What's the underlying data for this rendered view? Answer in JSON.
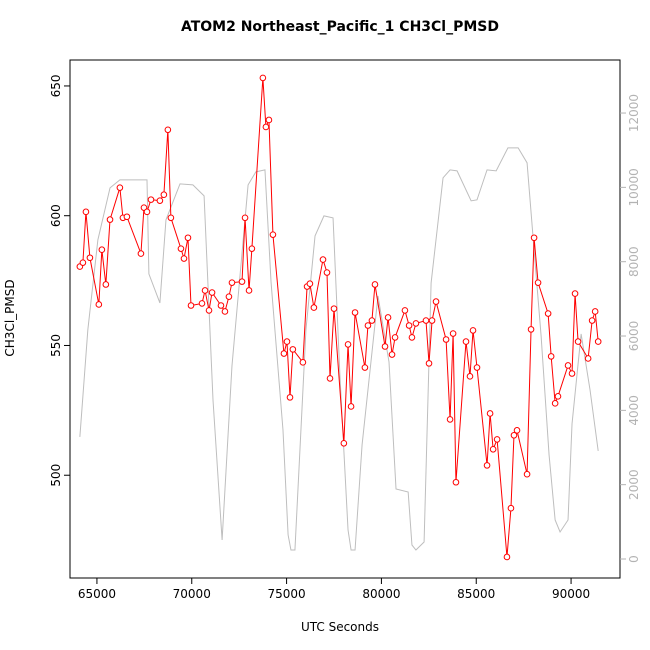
{
  "chart_data": {
    "type": "line",
    "title": "ATOM2 Northeast_Pacific_1 CH3Cl_PMSD",
    "x_label": "UTC Seconds",
    "y_label": "CH3Cl_PMSD",
    "xlim": [
      63580,
      92580
    ],
    "xticks": [
      65000,
      70000,
      75000,
      80000,
      85000,
      90000
    ],
    "ylim": [
      460.4,
      660
    ],
    "yticks": [
      500,
      550,
      600,
      650
    ],
    "y2lim": [
      -511,
      13427
    ],
    "y2ticks": [
      0,
      2000,
      4000,
      6000,
      8000,
      10000,
      12000
    ],
    "series": [
      {
        "color": "#ff0000",
        "markers": true,
        "x": [
          64100,
          64260,
          64420,
          64630,
          65100,
          65260,
          65470,
          65690,
          66210,
          66370,
          66580,
          67320,
          67480,
          67640,
          67850,
          68320,
          68530,
          68740,
          68900,
          69430,
          69590,
          69800,
          69960,
          70540,
          70700,
          70910,
          71070,
          71540,
          71750,
          71960,
          72120,
          72650,
          72810,
          73020,
          73170,
          73750,
          73910,
          74070,
          74280,
          74860,
          75020,
          75180,
          75330,
          75860,
          76080,
          76230,
          76440,
          76920,
          77130,
          77290,
          77500,
          78020,
          78240,
          78400,
          78610,
          79130,
          79290,
          79500,
          79660,
          80190,
          80350,
          80560,
          80720,
          81240,
          81460,
          81610,
          81820,
          82350,
          82510,
          82670,
          82880,
          83410,
          83620,
          83780,
          83930,
          84460,
          84670,
          84830,
          85040,
          85570,
          85730,
          85890,
          86100,
          86620,
          86830,
          86990,
          87150,
          87680,
          87890,
          88050,
          88260,
          88790,
          88950,
          89160,
          89310,
          89840,
          90050,
          90210,
          90370,
          90900,
          91110,
          91270,
          91430
        ],
        "values": [
          580.4,
          581.9,
          601.5,
          583.8,
          565.8,
          586.9,
          573.5,
          598.5,
          610.8,
          599.2,
          599.6,
          585.4,
          603.1,
          601.5,
          606.2,
          605.8,
          608.1,
          633.1,
          599.2,
          587.3,
          583.5,
          591.5,
          565.4,
          566.2,
          571.2,
          563.5,
          570.4,
          565.4,
          563.1,
          568.8,
          574.2,
          574.6,
          599.2,
          571.2,
          587.3,
          653.1,
          634.2,
          636.9,
          592.7,
          546.9,
          551.5,
          530,
          548.5,
          543.5,
          572.7,
          573.8,
          564.6,
          583.1,
          578.1,
          537.3,
          564.2,
          512.3,
          550.4,
          526.5,
          562.7,
          541.5,
          557.7,
          559.6,
          573.5,
          549.6,
          560.8,
          546.5,
          553.1,
          563.5,
          557.7,
          553.1,
          558.5,
          559.6,
          543.1,
          559.6,
          566.9,
          552.3,
          521.5,
          554.6,
          497.3,
          551.5,
          538.1,
          555.8,
          541.5,
          503.8,
          523.8,
          510,
          513.8,
          468.5,
          487.3,
          515.4,
          517.3,
          500.4,
          556.2,
          591.5,
          574.2,
          562.3,
          545.8,
          527.7,
          530.4,
          542.3,
          539.2,
          570,
          551.5,
          545,
          559.6,
          563.1,
          551.5
        ]
      },
      {
        "color": "#bebebe",
        "axis": "y2",
        "x": [
          64100,
          64520,
          65050,
          65690,
          66210,
          67640,
          67740,
          68320,
          68640,
          69380,
          70060,
          70650,
          71120,
          71600,
          72120,
          72970,
          73380,
          73860,
          74180,
          74810,
          75080,
          75230,
          75440,
          76020,
          76500,
          76970,
          77450,
          77810,
          78240,
          78400,
          78610,
          78980,
          79820,
          80400,
          80770,
          81410,
          81610,
          81820,
          82250,
          82620,
          83250,
          83620,
          83990,
          84730,
          85040,
          85570,
          86050,
          86670,
          87210,
          87680,
          88050,
          88420,
          88840,
          89160,
          89420,
          89840,
          90050,
          90530,
          91000,
          91430
        ],
        "values": [
          3284,
          6164,
          8587,
          9987,
          10202,
          10202,
          7672,
          6891,
          9125,
          10094,
          10067,
          9771,
          4280,
          511,
          5195,
          10067,
          10417,
          10471,
          7456,
          3472,
          646,
          242,
          242,
          6164,
          8694,
          9233,
          9179,
          4953,
          781,
          242,
          242,
          3069,
          7079,
          5303,
          1884,
          1803,
          377,
          242,
          458,
          7429,
          10256,
          10471,
          10444,
          9637,
          9664,
          10471,
          10444,
          11063,
          11063,
          10660,
          8318,
          6003,
          2800,
          1050,
          727,
          1050,
          3634,
          6057,
          4549,
          2907
        ]
      }
    ]
  }
}
